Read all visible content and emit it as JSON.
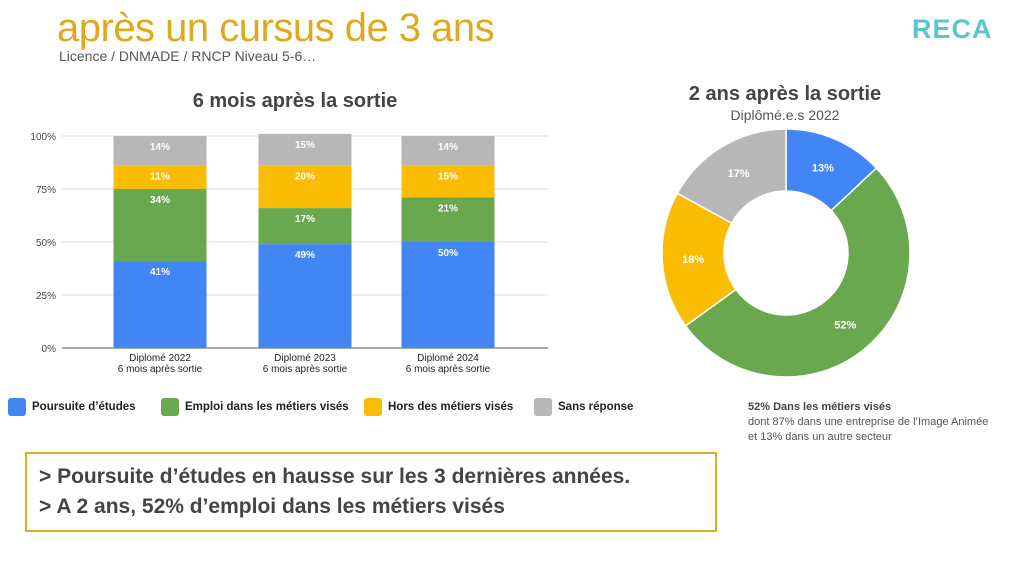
{
  "header": {
    "title": "après un cursus de 3 ans",
    "subtitle": "Licence / DNMADE / RNCP Niveau 5-6…",
    "logo": "RECA"
  },
  "colors": {
    "poursuite": "#4285f4",
    "emploi": "#6aa84f",
    "hors": "#fbbc04",
    "sans": "#b7b7b7",
    "accent": "#dfa91f"
  },
  "chart_data": [
    {
      "type": "bar",
      "stacked": true,
      "title": "6 mois après la sortie",
      "categories": [
        "Diplomé 2022\n6 mois après sortie",
        "Diplomé 2023\n6 mois après sortie",
        "Diplomé 2024\n6 mois après sortie"
      ],
      "ylim": [
        0,
        100
      ],
      "yticks": [
        "0%",
        "25%",
        "50%",
        "75%",
        "100%"
      ],
      "grid": true,
      "legend": "bottom",
      "series": [
        {
          "name": "Poursuite d’études",
          "values": [
            41,
            49,
            50
          ]
        },
        {
          "name": "Emploi dans les métiers visés",
          "values": [
            34,
            17,
            21
          ]
        },
        {
          "name": "Hors des métiers visés",
          "values": [
            11,
            20,
            15
          ]
        },
        {
          "name": "Sans réponse",
          "values": [
            14,
            15,
            14
          ]
        }
      ]
    },
    {
      "type": "pie",
      "donut": true,
      "title": "2 ans après la sortie",
      "subtitle": "Diplômé.e.s 2022",
      "slices": [
        {
          "name": "Poursuite d’études",
          "value": 13
        },
        {
          "name": "Emploi dans les métiers visés",
          "value": 52
        },
        {
          "name": "Hors des métiers visés",
          "value": 18
        },
        {
          "name": "Sans réponse",
          "value": 17
        }
      ]
    }
  ],
  "note": {
    "head": "52% Dans les métiers visés",
    "line1": "dont 87% dans une entreprise de l’Image Animée",
    "line2": "et 13% dans un autre secteur"
  },
  "conclusion": {
    "line1": "> Poursuite d’études en hausse sur les 3 dernières années.",
    "line2": "> A 2 ans, 52% d’emploi dans les métiers visés"
  }
}
